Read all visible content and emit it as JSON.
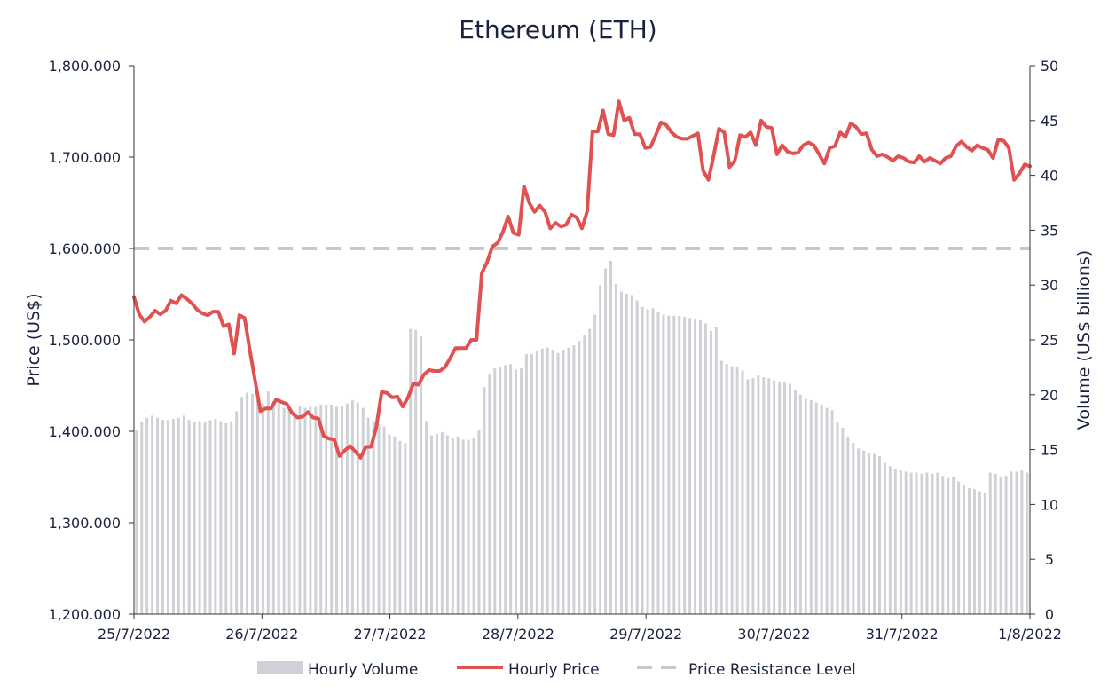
{
  "chart_data": {
    "type": "line",
    "title": "Ethereum (ETH)",
    "x_tick_labels": [
      "25/7/2022",
      "26/7/2022",
      "27/7/2022",
      "28/7/2022",
      "29/7/2022",
      "30/7/2022",
      "31/7/2022",
      "1/8/2022"
    ],
    "y_left": {
      "label": "Price (US$)",
      "ylim": [
        1200,
        1800
      ],
      "tick_labels": [
        "1,200.000",
        "1,300.000",
        "1,400.000",
        "1,500.000",
        "1,600.000",
        "1,700.000",
        "1,800.000"
      ]
    },
    "y_right": {
      "label": "Volume (US$ billions)",
      "ylim": [
        0,
        50
      ],
      "tick_labels": [
        "0",
        "5",
        "10",
        "15",
        "20",
        "25",
        "30",
        "35",
        "40",
        "45",
        "50"
      ]
    },
    "legend": {
      "position": "bottom",
      "items": [
        "Hourly Volume",
        "Hourly Price",
        "Price Resistance Level"
      ]
    },
    "colors": {
      "price": "#e05252",
      "volume": "#cfd1d6",
      "resistance": "#c8c8c8",
      "text": "#1b2140"
    },
    "resistance_level": 1600,
    "series": [
      {
        "name": "Hourly Price",
        "axis": "left",
        "points": [
          [
            0,
            1547
          ],
          [
            0.5,
            1528
          ],
          [
            1,
            1520
          ],
          [
            1.5,
            1525
          ],
          [
            2,
            1532
          ],
          [
            2.5,
            1528
          ],
          [
            3,
            1532
          ],
          [
            3.5,
            1543
          ],
          [
            4,
            1540
          ],
          [
            4.5,
            1549
          ],
          [
            5,
            1545
          ],
          [
            5.5,
            1540
          ],
          [
            6,
            1533
          ],
          [
            6.5,
            1529
          ],
          [
            7,
            1527
          ],
          [
            7.5,
            1531
          ],
          [
            8,
            1531
          ],
          [
            8.5,
            1515
          ],
          [
            9,
            1517
          ],
          [
            9.5,
            1485
          ],
          [
            10,
            1527
          ],
          [
            10.5,
            1524
          ],
          [
            11,
            1488
          ],
          [
            11.5,
            1455
          ],
          [
            12,
            1422
          ],
          [
            12.5,
            1425
          ],
          [
            13,
            1425
          ],
          [
            13.5,
            1435
          ],
          [
            14,
            1432
          ],
          [
            14.5,
            1430
          ],
          [
            15,
            1420
          ],
          [
            15.5,
            1415
          ],
          [
            16,
            1416
          ],
          [
            16.5,
            1421
          ],
          [
            17,
            1415
          ],
          [
            17.5,
            1414
          ],
          [
            18,
            1395
          ],
          [
            18.5,
            1392
          ],
          [
            19,
            1391
          ],
          [
            19.5,
            1373
          ],
          [
            20,
            1379
          ],
          [
            20.5,
            1384
          ],
          [
            21,
            1378
          ],
          [
            21.5,
            1371
          ],
          [
            22,
            1383
          ],
          [
            22.5,
            1383
          ],
          [
            23,
            1405
          ],
          [
            23.5,
            1443
          ],
          [
            24,
            1442
          ],
          [
            24.5,
            1437
          ],
          [
            25,
            1438
          ],
          [
            25.5,
            1427
          ],
          [
            26,
            1437
          ],
          [
            26.5,
            1452
          ],
          [
            27,
            1451
          ],
          [
            27.5,
            1462
          ],
          [
            28,
            1467
          ],
          [
            28.5,
            1466
          ],
          [
            29,
            1466
          ],
          [
            29.5,
            1470
          ],
          [
            30,
            1480
          ],
          [
            30.5,
            1491
          ],
          [
            31,
            1491
          ],
          [
            31.5,
            1491
          ],
          [
            32,
            1500
          ],
          [
            32.5,
            1500
          ],
          [
            33,
            1573
          ],
          [
            33.5,
            1585
          ],
          [
            34,
            1602
          ],
          [
            34.5,
            1606
          ],
          [
            35,
            1618
          ],
          [
            35.5,
            1635
          ],
          [
            36,
            1617
          ],
          [
            36.5,
            1615
          ],
          [
            37,
            1668
          ],
          [
            37.5,
            1650
          ],
          [
            38,
            1640
          ],
          [
            38.5,
            1647
          ],
          [
            39,
            1640
          ],
          [
            39.5,
            1622
          ],
          [
            40,
            1628
          ],
          [
            40.5,
            1624
          ],
          [
            41,
            1626
          ],
          [
            41.5,
            1637
          ],
          [
            42,
            1634
          ],
          [
            42.5,
            1622
          ],
          [
            43,
            1641
          ],
          [
            43.5,
            1728
          ],
          [
            44,
            1728
          ],
          [
            44.5,
            1751
          ],
          [
            45,
            1725
          ],
          [
            45.5,
            1724
          ],
          [
            46,
            1761
          ],
          [
            46.5,
            1740
          ],
          [
            47,
            1743
          ],
          [
            47.5,
            1725
          ],
          [
            48,
            1725
          ],
          [
            48.5,
            1710
          ],
          [
            49,
            1711
          ],
          [
            49.5,
            1724
          ],
          [
            50,
            1738
          ],
          [
            50.5,
            1735
          ],
          [
            51,
            1727
          ],
          [
            51.5,
            1722
          ],
          [
            52,
            1720
          ],
          [
            52.5,
            1720
          ],
          [
            53,
            1723
          ],
          [
            53.5,
            1726
          ],
          [
            54,
            1685
          ],
          [
            54.5,
            1675
          ],
          [
            55,
            1702
          ],
          [
            55.5,
            1731
          ],
          [
            56,
            1727
          ],
          [
            56.5,
            1689
          ],
          [
            57,
            1696
          ],
          [
            57.5,
            1724
          ],
          [
            58,
            1722
          ],
          [
            58.5,
            1727
          ],
          [
            59,
            1713
          ],
          [
            59.5,
            1740
          ],
          [
            60,
            1733
          ],
          [
            60.5,
            1732
          ],
          [
            61,
            1703
          ],
          [
            61.5,
            1713
          ],
          [
            62,
            1706
          ],
          [
            62.5,
            1704
          ],
          [
            63,
            1705
          ],
          [
            63.5,
            1713
          ],
          [
            64,
            1716
          ],
          [
            64.5,
            1713
          ],
          [
            65,
            1703
          ],
          [
            65.5,
            1693
          ],
          [
            66,
            1710
          ],
          [
            66.5,
            1712
          ],
          [
            67,
            1727
          ],
          [
            67.5,
            1722
          ],
          [
            68,
            1737
          ],
          [
            68.5,
            1733
          ],
          [
            69,
            1725
          ],
          [
            69.5,
            1726
          ],
          [
            70,
            1708
          ],
          [
            70.5,
            1701
          ],
          [
            71,
            1703
          ],
          [
            71.5,
            1700
          ],
          [
            72,
            1696
          ],
          [
            72.5,
            1701
          ],
          [
            73,
            1699
          ],
          [
            73.5,
            1695
          ],
          [
            74,
            1694
          ],
          [
            74.5,
            1701
          ],
          [
            75,
            1695
          ],
          [
            75.5,
            1699
          ],
          [
            76,
            1696
          ],
          [
            76.5,
            1693
          ],
          [
            77,
            1699
          ],
          [
            77.5,
            1701
          ],
          [
            78,
            1712
          ],
          [
            78.5,
            1717
          ],
          [
            79,
            1711
          ],
          [
            79.5,
            1707
          ],
          [
            80,
            1713
          ],
          [
            80.5,
            1710
          ],
          [
            81,
            1708
          ],
          [
            81.5,
            1699
          ],
          [
            82,
            1719
          ],
          [
            82.5,
            1718
          ],
          [
            83,
            1710
          ],
          [
            83.5,
            1675
          ],
          [
            84,
            1682
          ],
          [
            84.5,
            1692
          ],
          [
            85,
            1690
          ]
        ]
      },
      {
        "name": "Hourly Volume",
        "axis": "right",
        "type": "bar",
        "values": [
          16.8,
          17.5,
          17.9,
          18.1,
          17.9,
          17.7,
          17.7,
          17.8,
          17.9,
          18.1,
          17.7,
          17.5,
          17.6,
          17.5,
          17.7,
          17.8,
          17.6,
          17.4,
          17.6,
          18.5,
          19.8,
          20.2,
          20.1,
          19.5,
          19.2,
          20.3,
          19.4,
          19.3,
          18.8,
          18.6,
          18.4,
          19.0,
          18.8,
          18.9,
          18.9,
          19.1,
          19.1,
          19.1,
          18.9,
          19.0,
          19.2,
          19.5,
          19.3,
          18.8,
          17.9,
          17.6,
          17.3,
          17.1,
          16.4,
          16.2,
          15.8,
          15.6,
          26.0,
          25.9,
          25.3,
          17.6,
          16.3,
          16.4,
          16.6,
          16.3,
          16.1,
          16.2,
          15.9,
          15.9,
          16.1,
          16.8,
          20.7,
          21.9,
          22.4,
          22.5,
          22.7,
          22.8,
          22.3,
          22.4,
          23.7,
          23.7,
          24.0,
          24.2,
          24.3,
          24.1,
          23.8,
          24.1,
          24.3,
          24.5,
          24.9,
          25.4,
          26.0,
          27.3,
          30.0,
          31.5,
          32.2,
          30.1,
          29.4,
          29.2,
          29.1,
          28.6,
          28.0,
          27.8,
          27.9,
          27.6,
          27.3,
          27.2,
          27.2,
          27.2,
          27.1,
          27.0,
          26.9,
          26.8,
          26.5,
          25.8,
          26.2,
          23.1,
          22.8,
          22.6,
          22.5,
          22.2,
          21.4,
          21.5,
          21.8,
          21.6,
          21.5,
          21.3,
          21.2,
          21.1,
          21.0,
          20.4,
          20.0,
          19.6,
          19.5,
          19.3,
          19.1,
          18.8,
          18.6,
          17.5,
          17.0,
          16.2,
          15.6,
          15.1,
          14.9,
          14.7,
          14.6,
          14.4,
          13.8,
          13.5,
          13.2,
          13.1,
          13.0,
          12.9,
          12.9,
          12.8,
          12.9,
          12.8,
          12.9,
          12.6,
          12.4,
          12.5,
          12.1,
          11.8,
          11.5,
          11.4,
          11.2,
          11.1,
          12.9,
          12.8,
          12.5,
          12.6,
          13.0,
          13.0,
          13.1,
          12.9
        ]
      }
    ]
  }
}
